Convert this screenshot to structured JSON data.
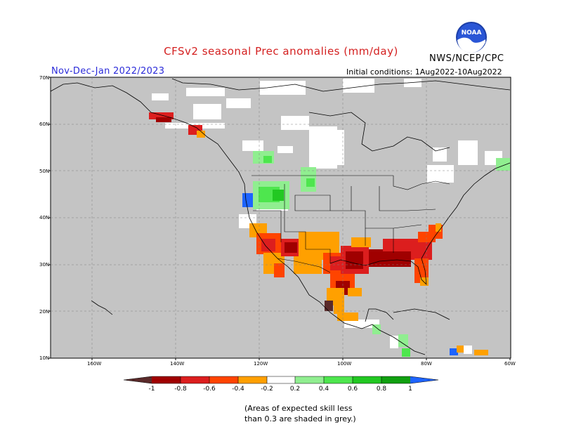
{
  "header": {
    "title": "CFSv2 seasonal Prec anomalies (mm/day)",
    "season": "Nov-Dec-Jan 2022/2023",
    "initial_conditions": "Initial conditions: 1Aug2022-10Aug2022",
    "agency": "NWS/NCEP/CPC",
    "logo_text": "NOAA"
  },
  "map": {
    "lat_ticks": [
      "70N",
      "60N",
      "50N",
      "40N",
      "30N",
      "20N",
      "10N"
    ],
    "lon_ticks": [
      "160W",
      "140W",
      "120W",
      "100W",
      "80W",
      "60W"
    ],
    "colors": {
      "skill_mask": "#c4c4c4",
      "land_line": "#000000"
    }
  },
  "legend": {
    "labels": [
      "-1",
      "-0.8",
      "-0.6",
      "-0.4",
      "-0.2",
      "0.2",
      "0.4",
      "0.6",
      "0.8",
      "1"
    ],
    "colors": {
      "lt_-1": "#5a2a2a",
      "-1_-0.8": "#a00000",
      "-0.8_-0.6": "#dc1e1e",
      "-0.6_-0.4": "#ff4400",
      "-0.4_-0.2": "#ffa000",
      "-0.2_0.2": "#ffffff",
      "0.2_0.4": "#90ee90",
      "0.4_0.6": "#4ee64e",
      "0.6_0.8": "#22c822",
      "0.8_1": "#10a010",
      "gt_1": "#1e64ff"
    }
  },
  "note": {
    "line1": "(Areas of expected skill less",
    "line2": "than 0.3 are shaded in grey.)"
  }
}
